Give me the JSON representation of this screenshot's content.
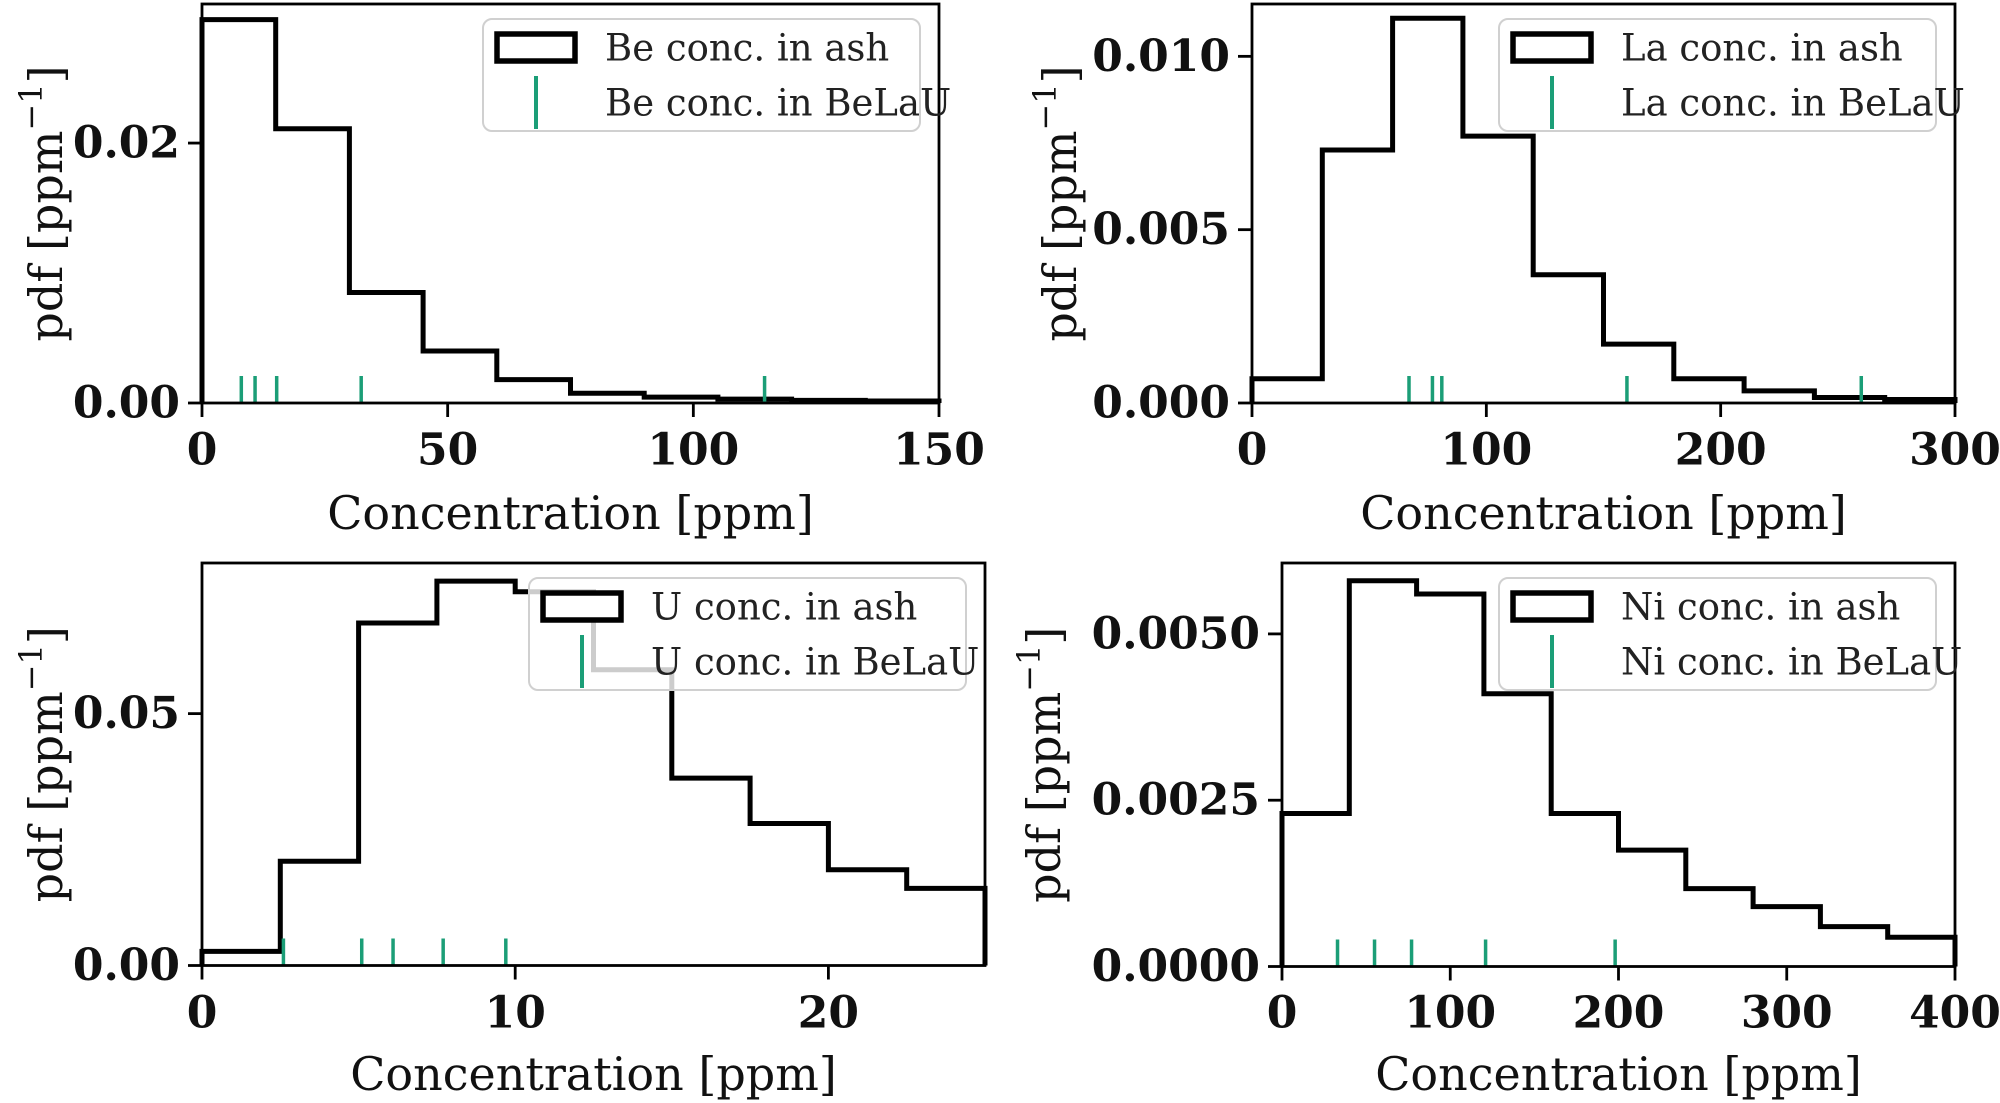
{
  "figure": {
    "background": "#ffffff",
    "colors": {
      "histogram_line": "#000000",
      "belau_tick_green": "#1b9e77",
      "legend_frame": "#d0d0d0",
      "legend_fill": "rgba(255,255,255,0.8)",
      "text": "#111111"
    },
    "ylabel": {
      "base": "pdf [ppm",
      "sup": "−1",
      "close": "]"
    },
    "xlabel": "Concentration [ppm]"
  },
  "chart_data": [
    {
      "id": "be",
      "type": "bar",
      "subtype": "step-histogram-with-rug",
      "title": "",
      "xlabel": "Concentration [ppm]",
      "ylabel": "pdf [ppm^-1]",
      "legend": [
        "Be conc. in ash",
        "Be conc. in BeLaU"
      ],
      "legend_position": "upper right",
      "xlim": [
        0,
        150
      ],
      "ylim": [
        0,
        0.0307
      ],
      "xticks": [
        "0",
        "50",
        "100",
        "150"
      ],
      "xtick_values": [
        0,
        50,
        100,
        150
      ],
      "ytick_labels": [
        "0.00",
        "0.02"
      ],
      "ytick_values": [
        0,
        0.02
      ],
      "bin_edges": [
        0,
        15,
        30,
        45,
        60,
        75,
        90,
        105,
        120,
        135,
        150
      ],
      "pdf_values": [
        0.0295,
        0.0211,
        0.0085,
        0.004,
        0.0018,
        0.00075,
        0.00045,
        0.0003,
        0.0002,
        0.00015
      ],
      "belau_ticks": [
        8,
        10.8,
        15.2,
        32.4,
        114.5
      ]
    },
    {
      "id": "la",
      "type": "bar",
      "subtype": "step-histogram-with-rug",
      "title": "",
      "xlabel": "Concentration [ppm]",
      "ylabel": "pdf [ppm^-1]",
      "legend": [
        "La conc. in ash",
        "La conc. in BeLaU"
      ],
      "legend_position": "upper right",
      "xlim": [
        0,
        300
      ],
      "ylim": [
        0,
        0.01151
      ],
      "xticks": [
        "0",
        "100",
        "200",
        "300"
      ],
      "xtick_values": [
        0,
        100,
        200,
        300
      ],
      "ytick_labels": [
        "0.000",
        "0.005",
        "0.010"
      ],
      "ytick_values": [
        0,
        0.005,
        0.01
      ],
      "bin_edges": [
        0,
        30,
        60,
        90,
        120,
        150,
        180,
        210,
        240,
        270,
        300
      ],
      "pdf_values": [
        0.0007,
        0.0073,
        0.0111,
        0.0077,
        0.0037,
        0.0017,
        0.0007,
        0.00035,
        0.00016,
        0.0001
      ],
      "belau_ticks": [
        67,
        77,
        81,
        160,
        260
      ]
    },
    {
      "id": "u",
      "type": "bar",
      "subtype": "step-histogram-with-rug",
      "title": "",
      "xlabel": "Concentration [ppm]",
      "ylabel": "pdf [ppm^-1]",
      "legend": [
        "U conc. in ash",
        "U conc. in BeLaU"
      ],
      "legend_position": "upper right",
      "xlim": [
        0,
        25
      ],
      "ylim": [
        0,
        0.0799
      ],
      "xticks": [
        "0",
        "10",
        "20"
      ],
      "xtick_values": [
        0,
        10,
        20
      ],
      "ytick_labels": [
        "0.00",
        "0.05"
      ],
      "ytick_values": [
        0,
        0.05
      ],
      "bin_edges": [
        0,
        2.5,
        5,
        7.5,
        10,
        12.5,
        15,
        17.5,
        20,
        22.5,
        25
      ],
      "pdf_values": [
        0.0028,
        0.0207,
        0.068,
        0.0763,
        0.0742,
        0.0587,
        0.0372,
        0.0282,
        0.019,
        0.0153
      ],
      "belau_ticks": [
        2.6,
        5.1,
        6.1,
        7.7,
        9.7
      ]
    },
    {
      "id": "ni",
      "type": "bar",
      "subtype": "step-histogram-with-rug",
      "title": "",
      "xlabel": "Concentration [ppm]",
      "ylabel": "pdf [ppm^-1]",
      "legend": [
        "Ni conc. in ash",
        "Ni conc. in BeLaU"
      ],
      "legend_position": "upper right",
      "xlim": [
        0,
        400
      ],
      "ylim": [
        0,
        0.006066
      ],
      "xticks": [
        "0",
        "100",
        "200",
        "300",
        "400"
      ],
      "xtick_values": [
        0,
        100,
        200,
        300,
        400
      ],
      "ytick_labels": [
        "0.0000",
        "0.0025",
        "0.0050"
      ],
      "ytick_values": [
        0,
        0.0025,
        0.005
      ],
      "bin_edges": [
        0,
        40,
        80,
        120,
        160,
        200,
        240,
        280,
        320,
        360,
        400
      ],
      "pdf_values": [
        0.0023,
        0.0058,
        0.0056,
        0.0041,
        0.0023,
        0.00175,
        0.00117,
        0.0009,
        0.0006,
        0.00044
      ],
      "belau_ticks": [
        33,
        55,
        77,
        121,
        198
      ]
    }
  ]
}
